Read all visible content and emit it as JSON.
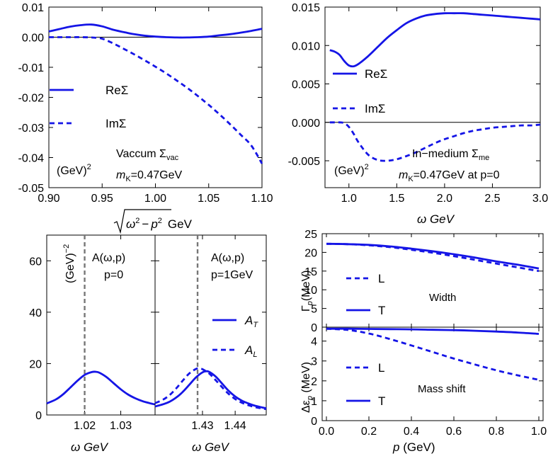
{
  "colors": {
    "curve": "#1515e6",
    "axis": "#000000",
    "marker": "#777777"
  },
  "chart_data": [
    {
      "id": "vacuum",
      "type": "line",
      "xlabel_parts": [
        "ω",
        "2",
        "−",
        "p",
        "2",
        "GeV"
      ],
      "ylabel": "",
      "xlim": [
        0.9,
        1.1
      ],
      "ylim": [
        -0.05,
        0.01
      ],
      "xticks": [
        "0.90",
        "0.95",
        "1.00",
        "1.05",
        "1.10"
      ],
      "xtick_values": [
        0.9,
        0.95,
        1.0,
        1.05,
        1.1
      ],
      "yticks": [
        "0.01",
        "0.00",
        "-0.01",
        "-0.02",
        "-0.03",
        "-0.04",
        "-0.05"
      ],
      "ytick_values": [
        0.01,
        0.0,
        -0.01,
        -0.02,
        -0.03,
        -0.04,
        -0.05
      ],
      "legend": [
        "ReΣ",
        "ImΣ"
      ],
      "annotations": {
        "title": "Vaccum Σ",
        "title_sub": "vac",
        "units": "(GeV)",
        "units_exp": "2",
        "mass_label": "m",
        "mass_sub": "K",
        "mass_value": "=0.47GeV"
      },
      "series": [
        {
          "name": "ReΣ",
          "style": "solid",
          "x": [
            0.9,
            0.91,
            0.92,
            0.93,
            0.94,
            0.95,
            0.96,
            0.97,
            0.98,
            0.99,
            1.0,
            1.01,
            1.02,
            1.03,
            1.04,
            1.05,
            1.06,
            1.07,
            1.08,
            1.09,
            1.1
          ],
          "y": [
            0.0019,
            0.0027,
            0.0035,
            0.004,
            0.0042,
            0.0036,
            0.0025,
            0.0017,
            0.001,
            0.0005,
            0.0002,
            0.0,
            -0.0001,
            -0.0001,
            0.0,
            0.0002,
            0.0006,
            0.001,
            0.0015,
            0.0021,
            0.0028
          ]
        },
        {
          "name": "ImΣ",
          "style": "dashed",
          "x": [
            0.9,
            0.91,
            0.92,
            0.93,
            0.94,
            0.95,
            0.96,
            0.97,
            0.98,
            0.99,
            1.0,
            1.01,
            1.02,
            1.03,
            1.04,
            1.05,
            1.06,
            1.07,
            1.08,
            1.09,
            1.1
          ],
          "y": [
            0.0,
            0.0,
            0.0,
            0.0,
            -0.0001,
            -0.0005,
            -0.002,
            -0.0038,
            -0.0057,
            -0.0077,
            -0.0098,
            -0.012,
            -0.0144,
            -0.0169,
            -0.0196,
            -0.0225,
            -0.0256,
            -0.0289,
            -0.0324,
            -0.036,
            -0.042
          ]
        }
      ]
    },
    {
      "id": "medium",
      "type": "line",
      "xlabel": "ω GeV",
      "xlim": [
        0.75,
        3.0
      ],
      "ylim": [
        -0.0085,
        0.015
      ],
      "xticks": [
        "1.0",
        "1.5",
        "2.0",
        "2.5",
        "3.0"
      ],
      "xtick_values": [
        1.0,
        1.5,
        2.0,
        2.5,
        3.0
      ],
      "yticks": [
        "0.015",
        "0.010",
        "0.005",
        "0.000",
        "-0.005"
      ],
      "ytick_values": [
        0.015,
        0.01,
        0.005,
        0.0,
        -0.005
      ],
      "legend": [
        "ReΣ",
        "ImΣ"
      ],
      "annotations": {
        "title": "In−medium Σ",
        "title_sub": "me",
        "units": "(GeV)",
        "units_exp": "2",
        "mass_label": "m",
        "mass_sub": "K",
        "mass_value": "=0.47GeV at p=0"
      },
      "series": [
        {
          "name": "ReΣ",
          "style": "solid",
          "x": [
            0.8,
            0.85,
            0.9,
            0.95,
            1.0,
            1.05,
            1.1,
            1.2,
            1.3,
            1.4,
            1.5,
            1.6,
            1.7,
            1.8,
            1.9,
            2.0,
            2.1,
            2.2,
            2.3,
            2.4,
            2.5,
            2.6,
            2.7,
            2.8,
            2.9,
            3.0
          ],
          "y": [
            0.0094,
            0.0092,
            0.0088,
            0.008,
            0.0074,
            0.0073,
            0.0076,
            0.0086,
            0.0098,
            0.011,
            0.012,
            0.0129,
            0.0135,
            0.0139,
            0.0141,
            0.0142,
            0.0142,
            0.0142,
            0.0141,
            0.014,
            0.0139,
            0.0138,
            0.0137,
            0.0136,
            0.0135,
            0.0134
          ]
        },
        {
          "name": "ImΣ",
          "style": "dashed",
          "x": [
            0.8,
            0.85,
            0.9,
            0.95,
            1.0,
            1.05,
            1.1,
            1.2,
            1.3,
            1.4,
            1.5,
            1.6,
            1.7,
            1.8,
            1.9,
            2.0,
            2.1,
            2.2,
            2.3,
            2.4,
            2.5,
            2.6,
            2.7,
            2.8,
            2.9,
            3.0
          ],
          "y": [
            0.0,
            0.0,
            0.0,
            -0.0001,
            -0.0006,
            -0.0015,
            -0.0026,
            -0.0042,
            -0.0049,
            -0.005,
            -0.0048,
            -0.0044,
            -0.0039,
            -0.0033,
            -0.0027,
            -0.0022,
            -0.0018,
            -0.0014,
            -0.0011,
            -0.0009,
            -0.0007,
            -0.0006,
            -0.0005,
            -0.0004,
            -0.0004,
            -0.0003
          ]
        }
      ]
    },
    {
      "id": "spectral-p0",
      "type": "line",
      "xlabel": "ω GeV",
      "xlim": [
        1.0095,
        1.0395
      ],
      "ylim": [
        0,
        70
      ],
      "xticks": [
        "1.02",
        "1.03"
      ],
      "xtick_values": [
        1.02,
        1.03
      ],
      "yticks": [
        "0",
        "20",
        "40",
        "60"
      ],
      "ytick_values": [
        0,
        20,
        40,
        60
      ],
      "marker_x": 1.02,
      "annotations": {
        "title": "A(ω,p)",
        "momentum": "p=0",
        "units": "(GeV)",
        "units_exp": "−2"
      },
      "series": [
        {
          "name": "A",
          "style": "solid",
          "x": [
            1.0095,
            1.012,
            1.014,
            1.016,
            1.018,
            1.02,
            1.022,
            1.023,
            1.024,
            1.026,
            1.028,
            1.03,
            1.032,
            1.034,
            1.036,
            1.038,
            1.0395
          ],
          "y": [
            4.5,
            6.0,
            8.0,
            10.6,
            13.3,
            15.6,
            16.7,
            16.8,
            16.5,
            14.8,
            12.4,
            10.0,
            8.0,
            6.5,
            5.4,
            4.6,
            4.1
          ]
        }
      ]
    },
    {
      "id": "spectral-p1",
      "type": "line",
      "xlabel": "ω GeV",
      "xlim": [
        1.4155,
        1.4495
      ],
      "ylim": [
        0,
        70
      ],
      "xticks": [
        "1.43",
        "1.44"
      ],
      "xtick_values": [
        1.43,
        1.44
      ],
      "marker_x": 1.4285,
      "legend": [
        "A",
        "A"
      ],
      "legend_subs": [
        "T",
        "L"
      ],
      "annotations": {
        "title": "A(ω,p)",
        "momentum": "p=1GeV"
      },
      "series": [
        {
          "name": "A_T",
          "style": "solid",
          "x": [
            1.4155,
            1.418,
            1.42,
            1.422,
            1.424,
            1.426,
            1.428,
            1.43,
            1.431,
            1.432,
            1.434,
            1.436,
            1.438,
            1.44,
            1.442,
            1.444,
            1.446,
            1.448,
            1.4495
          ],
          "y": [
            3.3,
            4.2,
            5.2,
            6.8,
            9.0,
            11.8,
            14.6,
            16.6,
            17.0,
            16.8,
            15.0,
            12.2,
            9.4,
            7.2,
            5.6,
            4.5,
            3.6,
            3.0,
            2.6
          ]
        },
        {
          "name": "A_L",
          "style": "dashed",
          "x": [
            1.4155,
            1.418,
            1.42,
            1.422,
            1.424,
            1.426,
            1.428,
            1.429,
            1.43,
            1.432,
            1.434,
            1.436,
            1.438,
            1.44,
            1.442,
            1.444,
            1.446,
            1.448,
            1.4495
          ],
          "y": [
            4.6,
            6.0,
            7.8,
            10.4,
            13.4,
            16.2,
            17.9,
            18.1,
            17.8,
            16.2,
            13.6,
            10.8,
            8.2,
            6.2,
            4.8,
            3.8,
            3.1,
            2.6,
            2.3
          ]
        }
      ]
    },
    {
      "id": "width",
      "type": "line",
      "ylabel_parts": [
        "Γ",
        "p",
        "(MeV)"
      ],
      "xlim": [
        -0.02,
        1.02
      ],
      "ylim": [
        0,
        25
      ],
      "yticks": [
        "0",
        "5",
        "10",
        "15",
        "20",
        "25"
      ],
      "ytick_values": [
        0,
        5,
        10,
        15,
        20,
        25
      ],
      "legend": [
        "L",
        "T"
      ],
      "annotations": {
        "title": "Width"
      },
      "series": [
        {
          "name": "L",
          "style": "dashed",
          "x": [
            0.0,
            0.1,
            0.2,
            0.3,
            0.4,
            0.5,
            0.6,
            0.7,
            0.8,
            0.9,
            1.0
          ],
          "y": [
            22.3,
            22.2,
            21.9,
            21.4,
            20.7,
            19.9,
            19.0,
            18.0,
            17.0,
            16.0,
            15.0
          ]
        },
        {
          "name": "T",
          "style": "solid",
          "x": [
            0.0,
            0.1,
            0.2,
            0.3,
            0.4,
            0.5,
            0.6,
            0.7,
            0.8,
            0.9,
            1.0
          ],
          "y": [
            22.3,
            22.2,
            22.0,
            21.6,
            21.0,
            20.3,
            19.5,
            18.6,
            17.6,
            16.7,
            15.7
          ]
        }
      ]
    },
    {
      "id": "mass-shift",
      "type": "line",
      "ylabel_parts": [
        "Δε",
        "p",
        " (MeV)"
      ],
      "xlabel_parts": [
        "p",
        " (GeV)"
      ],
      "xlim": [
        -0.02,
        1.02
      ],
      "ylim": [
        0,
        4.7
      ],
      "xticks": [
        "0.0",
        "0.2",
        "0.4",
        "0.6",
        "0.8",
        "1.0"
      ],
      "xtick_values": [
        0.0,
        0.2,
        0.4,
        0.6,
        0.8,
        1.0
      ],
      "yticks": [
        "0",
        "1",
        "2",
        "3",
        "4"
      ],
      "ytick_values": [
        0,
        1,
        2,
        3,
        4
      ],
      "legend": [
        "L",
        "T"
      ],
      "annotations": {
        "title": "Mass shift"
      },
      "series": [
        {
          "name": "L",
          "style": "dashed",
          "x": [
            0.0,
            0.1,
            0.2,
            0.3,
            0.4,
            0.5,
            0.6,
            0.7,
            0.8,
            0.9,
            1.0
          ],
          "y": [
            4.62,
            4.56,
            4.38,
            4.1,
            3.78,
            3.45,
            3.12,
            2.82,
            2.53,
            2.28,
            2.05
          ]
        },
        {
          "name": "T",
          "style": "solid",
          "x": [
            0.0,
            0.1,
            0.2,
            0.3,
            0.4,
            0.5,
            0.6,
            0.7,
            0.8,
            0.9,
            1.0
          ],
          "y": [
            4.62,
            4.62,
            4.61,
            4.6,
            4.59,
            4.57,
            4.55,
            4.52,
            4.48,
            4.43,
            4.36
          ]
        }
      ]
    }
  ]
}
